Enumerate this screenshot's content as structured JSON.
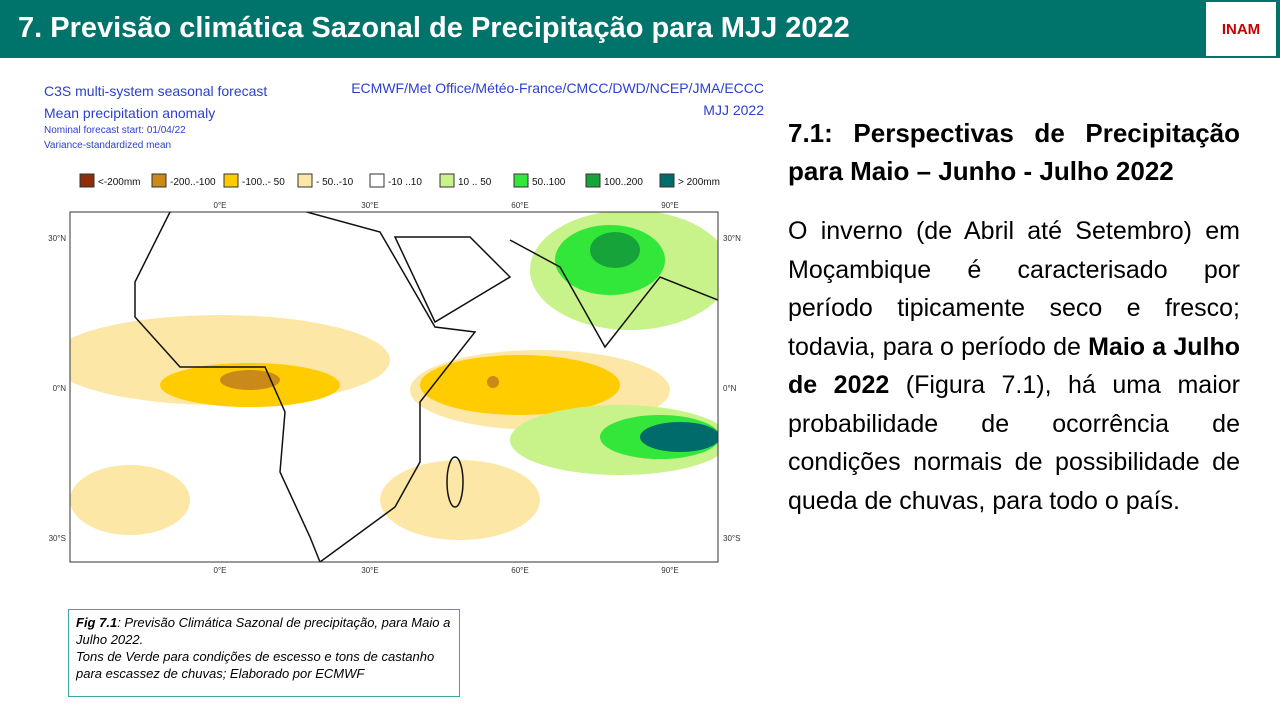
{
  "header": {
    "title": "7. Previsão climática Sazonal de Precipitação para MJJ 2022",
    "logo": "INAM"
  },
  "figure": {
    "title_left": [
      "C3S multi-system seasonal forecast",
      "Mean precipitation anomaly"
    ],
    "notes_left": [
      "Nominal forecast start: 01/04/22",
      "Variance-standardized mean"
    ],
    "title_right": [
      "ECMWF/Met Office/Météo-France/CMCC/DWD/NCEP/JMA/ECCC",
      "MJJ 2022"
    ],
    "legend": [
      {
        "label": "<-200mm",
        "color": "#8b2e0a"
      },
      {
        "label": "-200..-100",
        "color": "#c98a1a"
      },
      {
        "label": "-100..- 50",
        "color": "#ffcc00"
      },
      {
        "label": "- 50..-10",
        "color": "#fde7a6"
      },
      {
        "label": "-10 ..10",
        "color": "#ffffff"
      },
      {
        "label": "10 .. 50",
        "color": "#c8f28a"
      },
      {
        "label": "50..100",
        "color": "#33e63a"
      },
      {
        "label": "100..200",
        "color": "#16a33a"
      },
      {
        "label": "> 200mm",
        "color": "#006b6b"
      }
    ],
    "lon_top": [
      "0°E",
      "30°E",
      "60°E",
      "90°E"
    ],
    "lon_bottom": [
      "0°E",
      "30°E",
      "60°E",
      "90°E"
    ],
    "lat_left": [
      "30°N",
      "0°N",
      "30°S"
    ],
    "lat_right": [
      "30°N",
      "0°N",
      "30°S"
    ]
  },
  "caption": {
    "label": "Fig 7.1",
    "text1": ": Previsão Climática Sazonal de precipitação, para Maio a Julho 2022.",
    "text2": "Tons de Verde para condições de escesso e tons de castanho para escassez de chuvas; Elaborado por ECMWF"
  },
  "body": {
    "heading": "7.1: Perspectivas de Precipitação para Maio – Junho - Julho 2022",
    "before": "O inverno (de Abril até Setembro) em Moçambique é caracterisado por período tipicamente seco e fresco; todavia, para o período de ",
    "bold": "Maio a Julho de 2022",
    "after": " (Figura 7.1), há uma maior probabilidade de ocorrência de condições normais de possibilidade de queda de chuvas, para todo o país."
  }
}
